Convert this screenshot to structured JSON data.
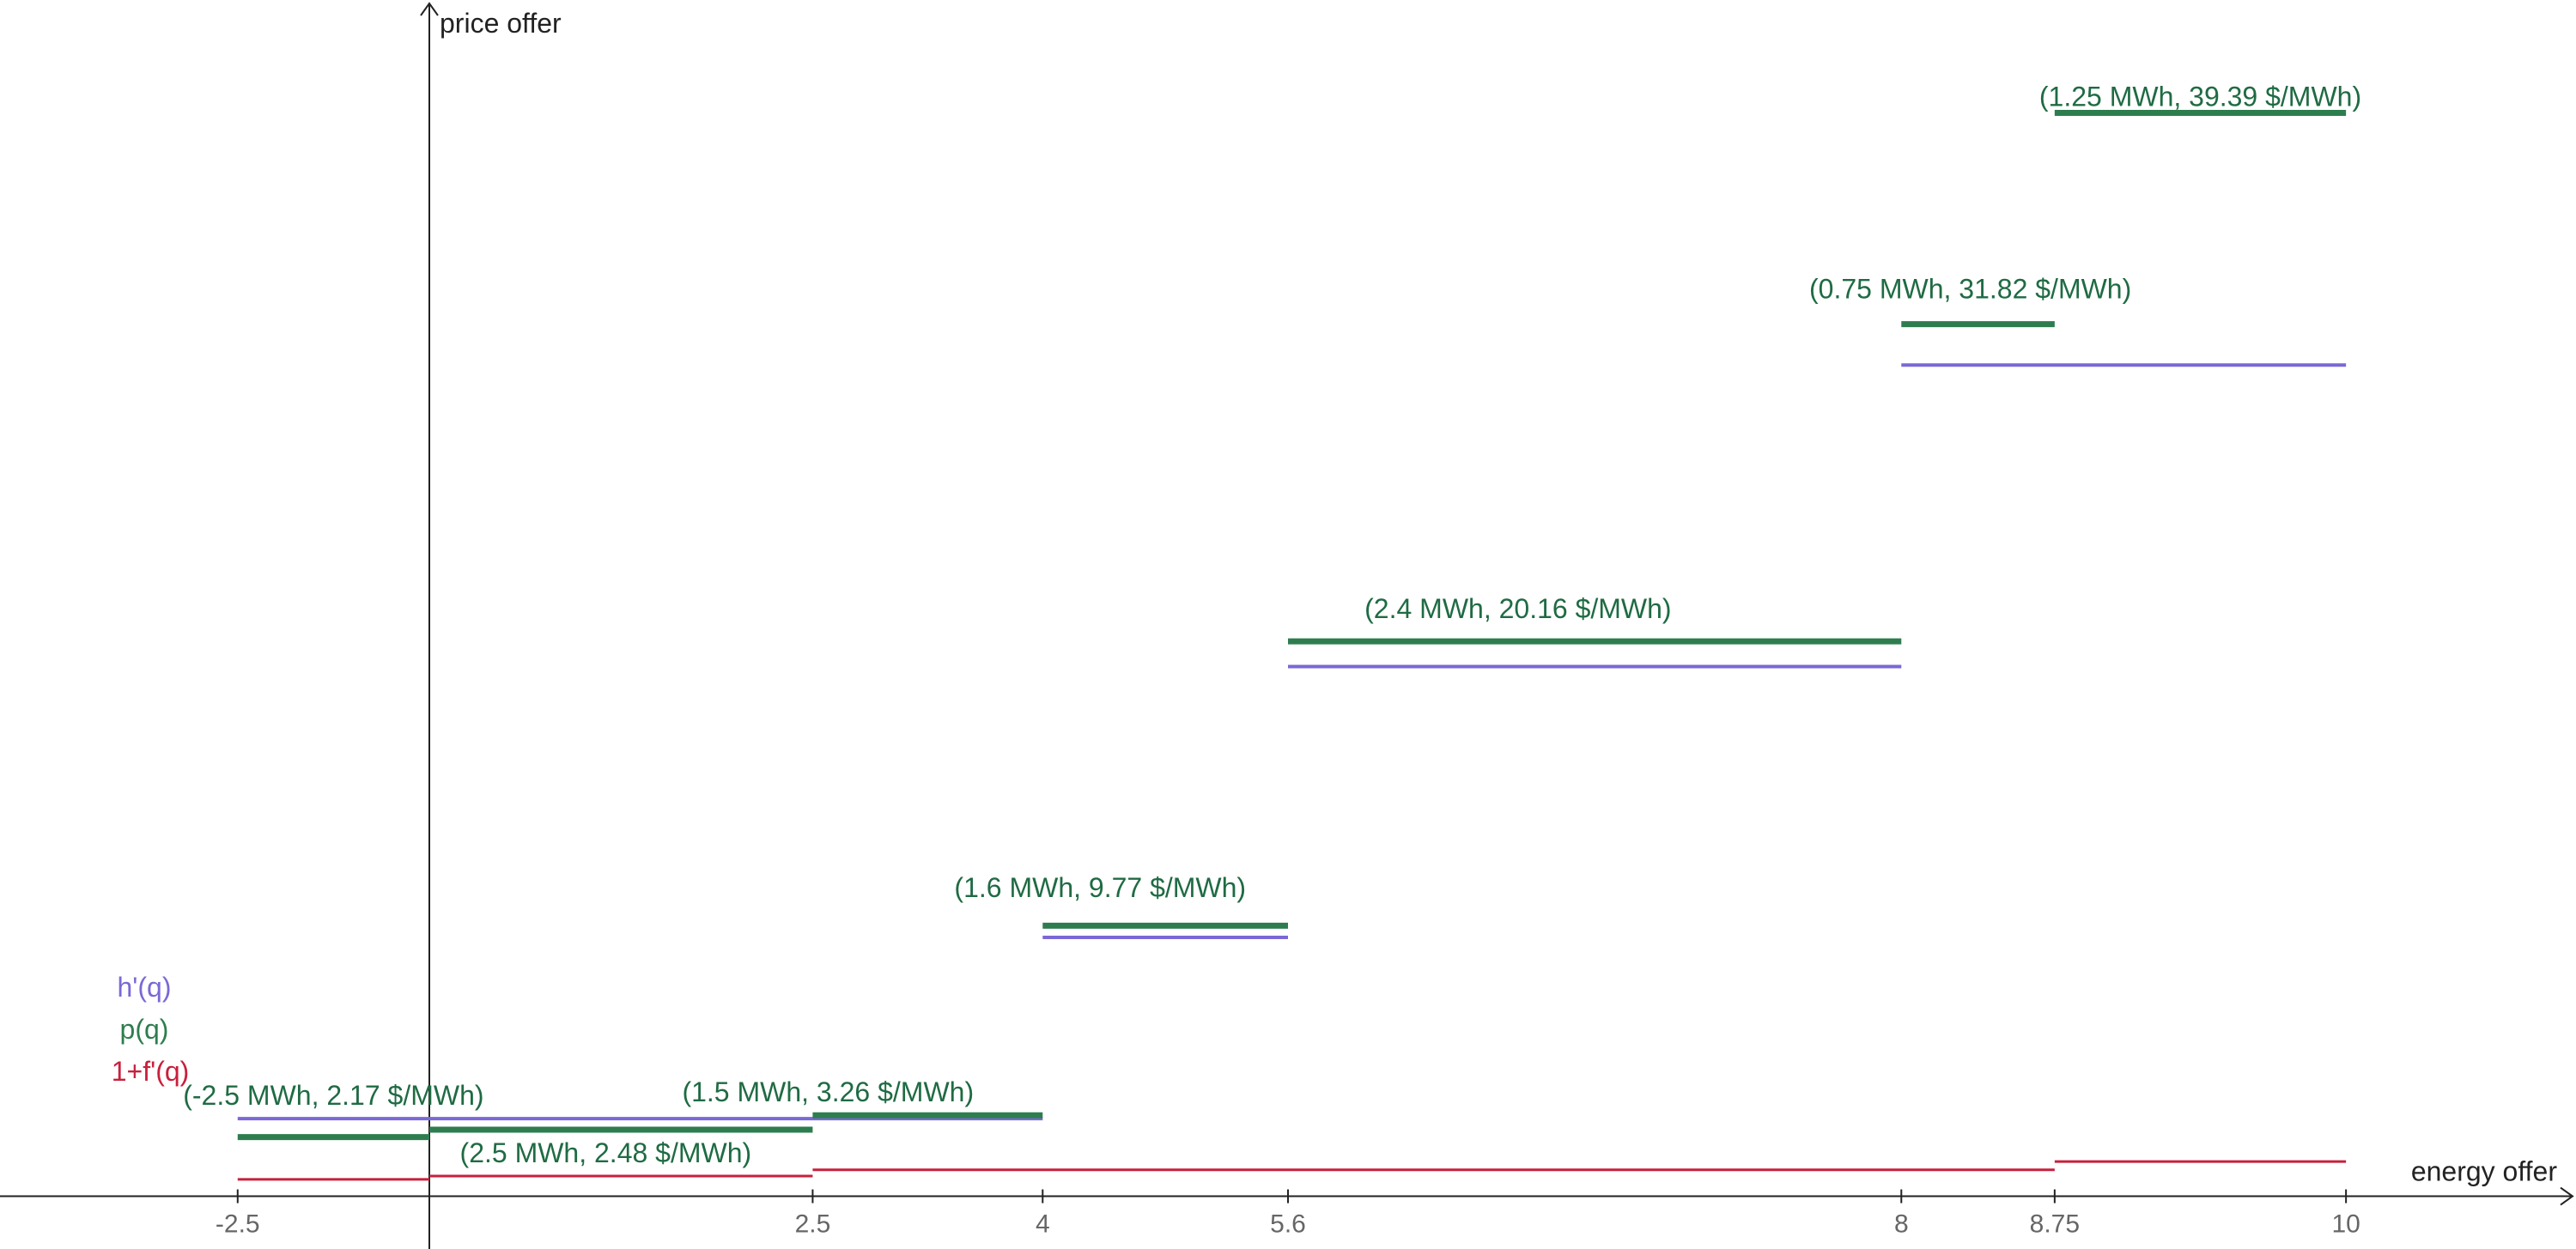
{
  "chart_data": {
    "type": "line",
    "subtype": "step-segments",
    "xlabel": "energy offer",
    "ylabel": "price offer",
    "xlim": [
      -5.6,
      28.0
    ],
    "ylim": [
      -1.72,
      39.0
    ],
    "grid": false,
    "x_ticks": [
      {
        "value": -2.5,
        "label": "-2.5"
      },
      {
        "value": 2.5,
        "label": "2.5"
      },
      {
        "value": 4,
        "label": "4"
      },
      {
        "value": 5.6,
        "label": "5.6"
      },
      {
        "value": 8,
        "label": "8"
      },
      {
        "value": 8.75,
        "label": "8.75"
      },
      {
        "value": 10,
        "label": "10"
      }
    ],
    "x_tick_positions": [
      -2.5,
      2.5,
      4,
      5.6,
      8,
      8.75,
      10
    ],
    "x_scale_note": "tick labels are non-uniformly spaced",
    "x_label_map": [
      [
        -2.5,
        -2.5
      ],
      [
        0,
        0
      ],
      [
        2.5,
        5.0
      ],
      [
        4,
        8.0
      ],
      [
        5.6,
        11.2
      ],
      [
        8,
        19.2
      ],
      [
        8.75,
        21.2
      ],
      [
        10,
        25.0
      ]
    ],
    "legend_placement": "left",
    "series": [
      {
        "name": "h'(q)",
        "color": "#7b68d6",
        "segments": [
          {
            "x0": -2.5,
            "x1": 4,
            "y": 2.53
          },
          {
            "x0": 4,
            "x1": 5.6,
            "y": 8.44
          },
          {
            "x0": 5.6,
            "x1": 8,
            "y": 17.27
          },
          {
            "x0": 8,
            "x1": 10,
            "y": 27.1
          }
        ]
      },
      {
        "name": "p(q)",
        "color": "#2e7d4f",
        "segments": [
          {
            "x0": -2.5,
            "x1": 0,
            "y": 1.93
          },
          {
            "x0": 0,
            "x1": 2.5,
            "y": 2.17
          },
          {
            "x0": 2.5,
            "x1": 4,
            "y": 2.64
          },
          {
            "x0": 4,
            "x1": 5.6,
            "y": 8.82
          },
          {
            "x0": 5.6,
            "x1": 8,
            "y": 18.09
          },
          {
            "x0": 8,
            "x1": 8.75,
            "y": 28.43
          },
          {
            "x0": 8.75,
            "x1": 10,
            "y": 35.32
          }
        ]
      },
      {
        "name": "1+f'(q)",
        "color": "#c8203c",
        "segments": [
          {
            "x0": -2.5,
            "x1": 0,
            "y": 0.55
          },
          {
            "x0": 0,
            "x1": 2.5,
            "y": 0.66
          },
          {
            "x0": 2.5,
            "x1": 8.75,
            "y": 0.86
          },
          {
            "x0": 8.75,
            "x1": 10,
            "y": 1.13
          }
        ]
      }
    ],
    "annotations": [
      {
        "text": "(-2.5 MWh, 2.17 $/MWh)",
        "x": -1.25,
        "y": 2.98
      },
      {
        "text": "(2.5 MWh, 2.48 $/MWh)",
        "x": 2.3,
        "y": 1.1
      },
      {
        "text": "(1.5 MWh, 3.26 $/MWh)",
        "x": 5.2,
        "y": 3.1
      },
      {
        "text": "(1.6 MWh, 9.77 $/MWh)",
        "x": 8.75,
        "y": 9.75
      },
      {
        "text": "(2.4 MWh, 20.16 $/MWh)",
        "x": 14.2,
        "y": 18.85
      },
      {
        "text": "(0.75 MWh, 31.82 $/MWh)",
        "x": 20.1,
        "y": 29.28
      },
      {
        "text": "(1.25 MWh, 39.39 $/MWh)",
        "x": 23.1,
        "y": 35.55
      }
    ]
  }
}
